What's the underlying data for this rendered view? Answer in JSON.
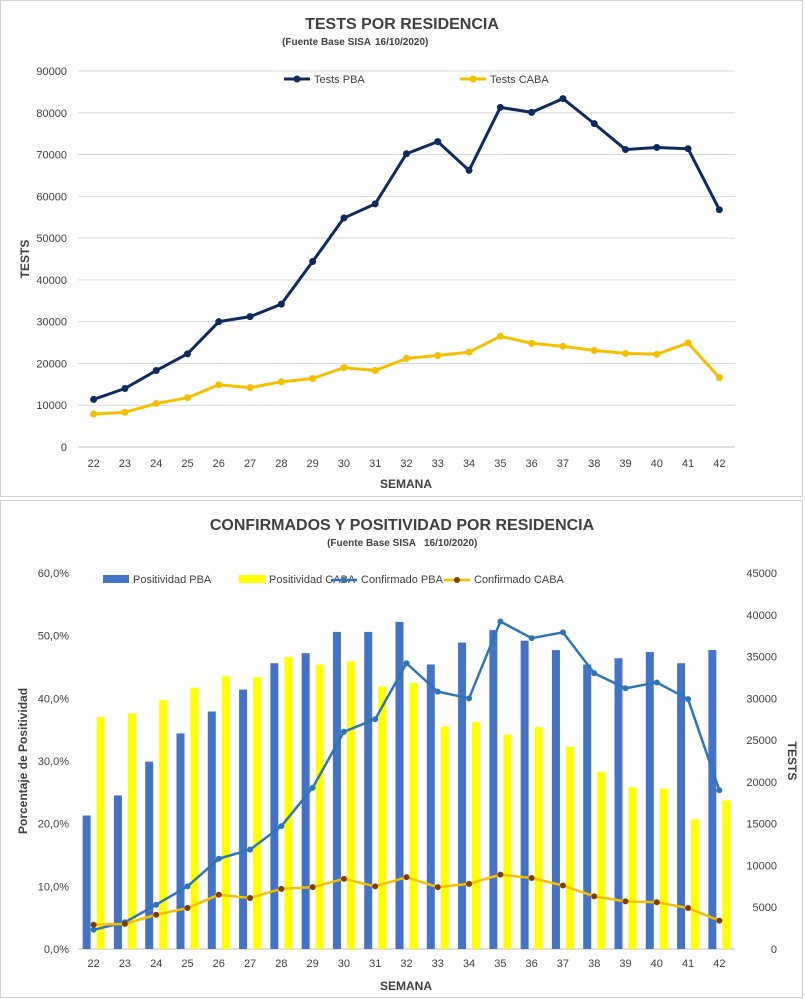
{
  "chart_data": [
    {
      "type": "line",
      "title": "TESTS POR RESIDENCIA",
      "subtitle": "(Fuente Base SISA",
      "subtitle_date": "16/10/2020)",
      "xlabel": "SEMANA",
      "ylabel": "TESTS",
      "ylim": [
        0,
        90000
      ],
      "yticks": [
        "0",
        "10000",
        "20000",
        "30000",
        "40000",
        "50000",
        "60000",
        "70000",
        "80000",
        "90000"
      ],
      "grid": true,
      "legend_position": "top",
      "categories": [
        "22",
        "23",
        "24",
        "25",
        "26",
        "27",
        "28",
        "29",
        "30",
        "31",
        "32",
        "33",
        "34",
        "35",
        "36",
        "37",
        "38",
        "39",
        "40",
        "41",
        "42"
      ],
      "series": [
        {
          "name": "Tests PBA",
          "color": "#0d2b5e",
          "values": [
            11400,
            14000,
            18300,
            22300,
            30000,
            31200,
            34200,
            44400,
            54800,
            58200,
            70200,
            73100,
            66200,
            81300,
            80100,
            83400,
            77400,
            71200,
            71700,
            71400,
            56800
          ]
        },
        {
          "name": "Tests CABA",
          "color": "#f5bf00",
          "values": [
            7900,
            8300,
            10400,
            11800,
            14900,
            14200,
            15600,
            16400,
            19000,
            18300,
            21200,
            21900,
            22700,
            26500,
            24800,
            24100,
            23100,
            22400,
            22200,
            24900,
            16600
          ]
        }
      ]
    },
    {
      "type": "bar",
      "title": "CONFIRMADOS Y POSITIVIDAD POR RESIDENCIA",
      "subtitle": "(Fuente Base SISA",
      "subtitle_date": "16/10/2020)",
      "xlabel": "SEMANA",
      "ylabel": "Porcentaje de Positividad",
      "y2label": "TESTS",
      "ylim": [
        0,
        60
      ],
      "y2lim": [
        0,
        45000
      ],
      "yticks": [
        "0,0%",
        "10,0%",
        "20,0%",
        "30,0%",
        "40,0%",
        "50,0%",
        "60,0%"
      ],
      "y2ticks": [
        "0",
        "5000",
        "10000",
        "15000",
        "20000",
        "25000",
        "30000",
        "35000",
        "40000",
        "45000"
      ],
      "grid": false,
      "legend_position": "top",
      "categories": [
        "22",
        "23",
        "24",
        "25",
        "26",
        "27",
        "28",
        "29",
        "30",
        "31",
        "32",
        "33",
        "34",
        "35",
        "36",
        "37",
        "38",
        "39",
        "40",
        "41",
        "42"
      ],
      "bar_series": [
        {
          "name": "Positividad PBA",
          "color": "#4472c4",
          "values": [
            21.3,
            24.5,
            29.9,
            34.4,
            37.9,
            41.4,
            45.6,
            47.2,
            50.6,
            50.6,
            52.2,
            45.4,
            48.9,
            50.9,
            49.2,
            47.7,
            45.4,
            46.4,
            47.4,
            45.6,
            47.7
          ]
        },
        {
          "name": "Positividad CABA",
          "color": "#ffff00",
          "values": [
            37.0,
            37.6,
            39.7,
            41.7,
            43.5,
            43.4,
            46.6,
            45.4,
            45.9,
            41.9,
            42.5,
            35.5,
            36.2,
            34.2,
            35.4,
            32.3,
            28.3,
            25.8,
            25.6,
            20.7,
            23.7
          ]
        }
      ],
      "line_series": [
        {
          "name": "Confirmado PBA",
          "color": "#2e75b6",
          "axis": "secondary",
          "values": [
            2300,
            3200,
            5300,
            7500,
            10800,
            11900,
            14700,
            19300,
            26000,
            27500,
            34200,
            30800,
            30000,
            39200,
            37200,
            37900,
            33000,
            31200,
            31900,
            29900,
            19000
          ]
        },
        {
          "name": "Confirmado CABA",
          "color": "#f5bf00",
          "marker_color": "#7f3f00",
          "axis": "secondary",
          "values": [
            2900,
            3000,
            4100,
            4900,
            6500,
            6100,
            7200,
            7400,
            8400,
            7500,
            8600,
            7400,
            7800,
            8900,
            8500,
            7600,
            6300,
            5700,
            5600,
            4900,
            3400
          ]
        }
      ]
    }
  ]
}
